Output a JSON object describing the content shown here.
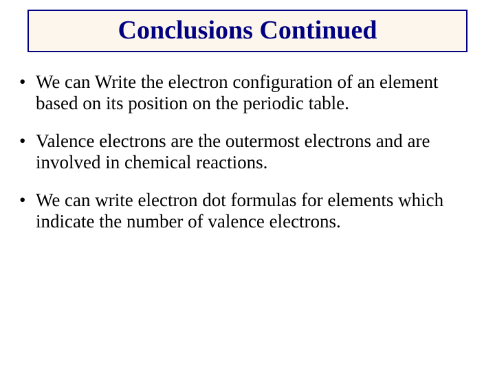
{
  "slide": {
    "title": "Conclusions Continued",
    "title_box": {
      "border_color": "#000080",
      "background_color": "#fdf6ec",
      "text_color": "#000080"
    },
    "bullets": [
      "We can Write the electron configuration of an element based on its position on the periodic table.",
      "Valence electrons are the outermost electrons and are involved in chemical reactions.",
      "We can write electron dot formulas for elements which indicate the number of valence electrons."
    ],
    "body_text_color": "#000000",
    "background_color": "#ffffff",
    "title_fontsize": 38,
    "body_fontsize": 27
  }
}
